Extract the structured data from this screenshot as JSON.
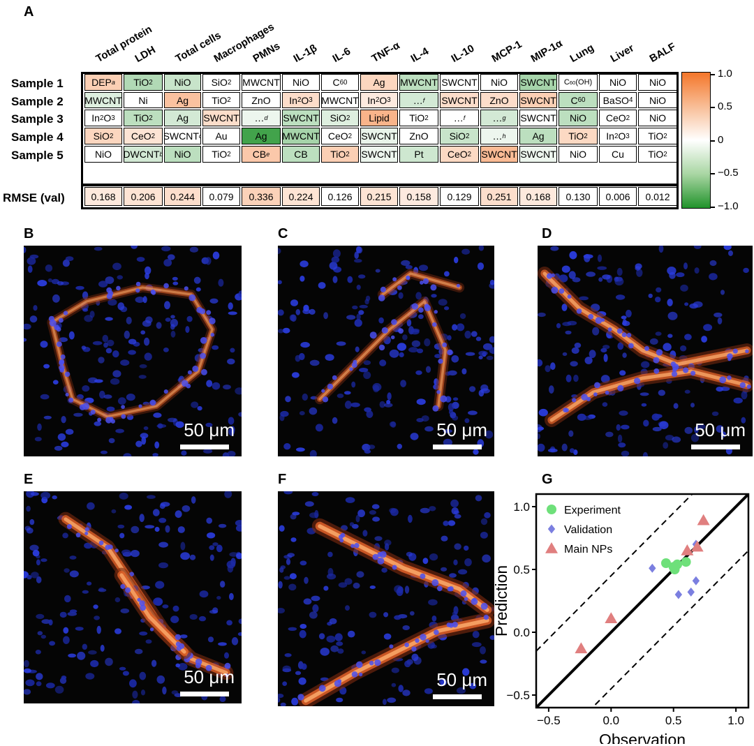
{
  "panels": {
    "a": "A",
    "b": "B",
    "c": "C",
    "d": "D",
    "e": "E",
    "f": "F",
    "g": "G"
  },
  "table": {
    "columns": [
      "Total protein",
      "LDH",
      "Total cells",
      "Macrophages",
      "PMNs",
      "IL-1β",
      "IL-6",
      "TNF-α",
      "IL-4",
      "IL-10",
      "MCP-1",
      "MIP-1α",
      "Lung",
      "Liver",
      "BALF"
    ],
    "rows": [
      "Sample 1",
      "Sample 2",
      "Sample 3",
      "Sample 4",
      "Sample 5"
    ],
    "rmse_label": "RMSE (val)",
    "cells": [
      [
        "DEP",
        "TiO2",
        "NiO",
        "SiO2",
        "MWCNT",
        "NiO",
        "C60",
        "Ag",
        "MWCNT",
        "SWCNT",
        "NiO",
        "SWCNT",
        "C60(OH)",
        "NiO",
        "NiO"
      ],
      [
        "MWCNT",
        "Ni",
        "Ag",
        "TiO2",
        "ZnO",
        "In2O3",
        "MWCNT",
        "In2O3",
        "...",
        "SWCNT",
        "ZnO",
        "SWCNT",
        "C60",
        "BaSO4",
        "NiO"
      ],
      [
        "In2O3",
        "TiO2",
        "Ag",
        "SWCNT",
        "...",
        "SWCNT",
        "SiO2",
        "Lipid",
        "TiO2",
        "...",
        "...",
        "SWCNT",
        "NiO",
        "CeO2",
        "NiO"
      ],
      [
        "SiO2",
        "CeO2",
        "SWCNT",
        "Au",
        "Ag",
        "MWCNT",
        "CeO2",
        "SWCNT",
        "ZnO",
        "SiO2",
        "...",
        "Ag",
        "TiO2",
        "In2O3",
        "TiO2"
      ],
      [
        "NiO",
        "DWCNT",
        "NiO",
        "TiO2",
        "CB",
        "CB",
        "TiO2",
        "SWCNT",
        "Pt",
        "CeO2",
        "SWCNT",
        "SWCNT",
        "NiO",
        "Cu",
        "TiO2"
      ]
    ],
    "footnotes": [
      [
        "a",
        "",
        "",
        "",
        "",
        "",
        "",
        "",
        "",
        "",
        "",
        "",
        "",
        "",
        ""
      ],
      [
        "",
        "",
        "",
        "",
        "",
        "",
        "",
        "",
        "f",
        "",
        "",
        "",
        "",
        "",
        ""
      ],
      [
        "",
        "",
        "",
        "",
        "d",
        "",
        "",
        "",
        "",
        "f",
        "g",
        "",
        "",
        "",
        ""
      ],
      [
        "",
        "",
        "c",
        "",
        "",
        "",
        "",
        "",
        "",
        "",
        "h",
        "",
        "",
        "",
        ""
      ],
      [
        "",
        "b",
        "",
        "",
        "e",
        "",
        "",
        "",
        "",
        "",
        "",
        "",
        "",
        "",
        ""
      ]
    ],
    "values": [
      [
        0.35,
        -0.35,
        -0.25,
        0,
        0,
        0,
        0,
        0.3,
        -0.3,
        0,
        0,
        -0.4,
        0,
        0,
        0
      ],
      [
        -0.15,
        0,
        0.45,
        0,
        0,
        0.25,
        0,
        0.15,
        -0.2,
        0.25,
        0.25,
        0.35,
        -0.3,
        0,
        0
      ],
      [
        0,
        -0.3,
        -0.2,
        0.25,
        -0.08,
        -0.3,
        -0.15,
        0.55,
        0,
        0,
        -0.2,
        0,
        -0.3,
        0,
        0
      ],
      [
        0.3,
        0.2,
        0,
        0,
        -0.85,
        -0.4,
        0,
        -0.1,
        0,
        -0.25,
        -0.08,
        -0.3,
        0.28,
        0,
        0
      ],
      [
        0,
        -0.2,
        -0.3,
        0,
        0.4,
        -0.3,
        0.35,
        -0.08,
        -0.22,
        0.28,
        0.5,
        -0.08,
        0,
        0,
        0
      ]
    ],
    "rmse": [
      "0.168",
      "0.206",
      "0.244",
      "0.079",
      "0.336",
      "0.224",
      "0.126",
      "0.215",
      "0.158",
      "0.129",
      "0.251",
      "0.168",
      "0.130",
      "0.006",
      "0.012"
    ],
    "rmse_values": [
      0.16,
      0.2,
      0.24,
      0,
      0.33,
      0.2,
      0,
      0.2,
      0.15,
      0,
      0.24,
      0.16,
      0,
      0,
      0
    ],
    "colorbar": {
      "ticks": [
        "1.0",
        "0.5",
        "0",
        "−0.5",
        "−1.0"
      ],
      "high_color": "#f4762a",
      "mid_color": "#ffffff",
      "low_color": "#21932b"
    }
  },
  "micrographs": [
    {
      "id": "B",
      "scale": "50 μm"
    },
    {
      "id": "C",
      "scale": "50 μm"
    },
    {
      "id": "D",
      "scale": "50 μm"
    },
    {
      "id": "E",
      "scale": "50 μm"
    },
    {
      "id": "F",
      "scale": "50 μm"
    }
  ],
  "chart_data": {
    "type": "scatter",
    "title": "",
    "xlabel": "Observation",
    "ylabel": "Prediction",
    "xlim": [
      -0.6,
      1.1
    ],
    "ylim": [
      -0.6,
      1.1
    ],
    "xticks": [
      "−0.5",
      "0.0",
      "0.5",
      "1.0"
    ],
    "yticks": [
      "−0.5",
      "0.0",
      "0.5",
      "1.0"
    ],
    "legend_position": "top-left",
    "reference_lines": [
      {
        "style": "solid",
        "slope": 1,
        "intercept": 0
      },
      {
        "style": "dashed",
        "slope": 1,
        "intercept": 0.45
      },
      {
        "style": "dashed",
        "slope": 1,
        "intercept": -0.45
      }
    ],
    "series": [
      {
        "name": "Experiment",
        "marker": "circle",
        "color": "#6ee07a",
        "points": [
          [
            0.44,
            0.55
          ],
          [
            0.5,
            0.52
          ],
          [
            0.53,
            0.54
          ],
          [
            0.6,
            0.56
          ],
          [
            0.51,
            0.5
          ]
        ]
      },
      {
        "name": "Validation",
        "marker": "diamond",
        "color": "#7b7fe0",
        "points": [
          [
            0.33,
            0.51
          ],
          [
            0.54,
            0.3
          ],
          [
            0.64,
            0.32
          ],
          [
            0.68,
            0.41
          ],
          [
            0.68,
            0.7
          ]
        ]
      },
      {
        "name": "Main NPs",
        "marker": "triangle",
        "color": "#e07f7f",
        "points": [
          [
            -0.24,
            -0.13
          ],
          [
            0.0,
            0.11
          ],
          [
            0.61,
            0.65
          ],
          [
            0.69,
            0.68
          ],
          [
            0.74,
            0.89
          ]
        ]
      }
    ]
  }
}
